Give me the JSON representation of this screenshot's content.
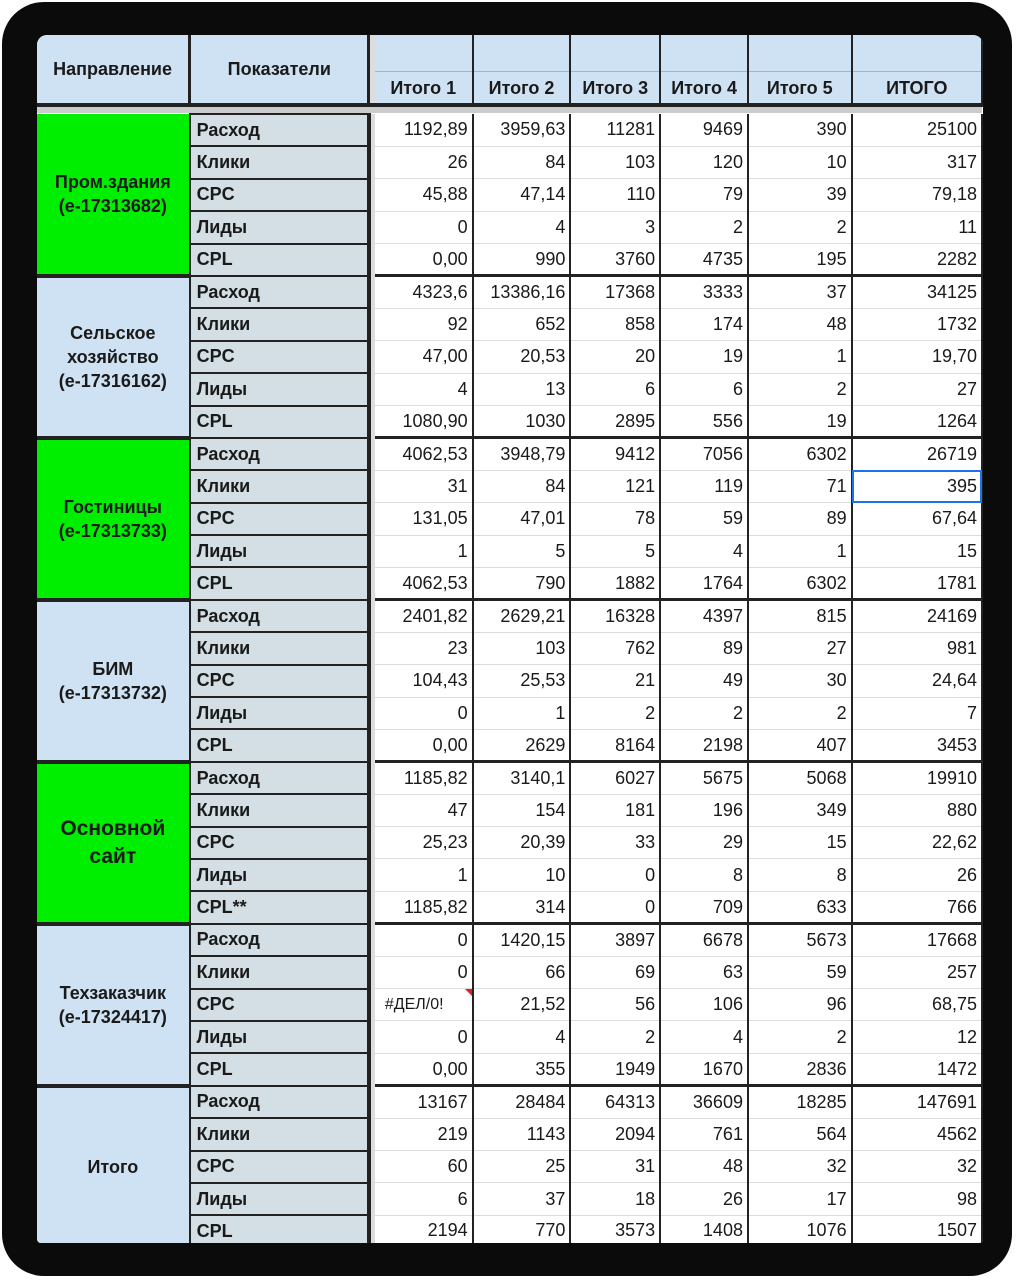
{
  "headers": {
    "direction": "Направление",
    "indicators": "Показатели",
    "columns": [
      "Итого 1",
      "Итого 2",
      "Итого 3",
      "Итого 4",
      "Итого 5",
      "ИТОГО"
    ]
  },
  "colors": {
    "green": "#00ee00",
    "blue": "#cfe2f3",
    "indicator": "#d3dfe4"
  },
  "groups": [
    {
      "name": "Пром.здания\n(e-17313682)",
      "color": "green",
      "rows": [
        {
          "label": "Расход",
          "values": [
            "1192,89",
            "3959,63",
            "11281",
            "9469",
            "390",
            "25100"
          ]
        },
        {
          "label": "Клики",
          "values": [
            "26",
            "84",
            "103",
            "120",
            "10",
            "317"
          ]
        },
        {
          "label": "CPC",
          "values": [
            "45,88",
            "47,14",
            "110",
            "79",
            "39",
            "79,18"
          ]
        },
        {
          "label": "Лиды",
          "values": [
            "0",
            "4",
            "3",
            "2",
            "2",
            "11"
          ]
        },
        {
          "label": "CPL",
          "values": [
            "0,00",
            "990",
            "3760",
            "4735",
            "195",
            "2282"
          ]
        }
      ]
    },
    {
      "name": "Сельское\nхозяйство\n(e-17316162)",
      "color": "blue",
      "rows": [
        {
          "label": "Расход",
          "values": [
            "4323,6",
            "13386,16",
            "17368",
            "3333",
            "37",
            "34125"
          ]
        },
        {
          "label": "Клики",
          "values": [
            "92",
            "652",
            "858",
            "174",
            "48",
            "1732"
          ]
        },
        {
          "label": "CPC",
          "values": [
            "47,00",
            "20,53",
            "20",
            "19",
            "1",
            "19,70"
          ]
        },
        {
          "label": "Лиды",
          "values": [
            "4",
            "13",
            "6",
            "6",
            "2",
            "27"
          ]
        },
        {
          "label": "CPL",
          "values": [
            "1080,90",
            "1030",
            "2895",
            "556",
            "19",
            "1264"
          ]
        }
      ]
    },
    {
      "name": "Гостиницы\n(e-17313733)",
      "color": "green",
      "rows": [
        {
          "label": "Расход",
          "values": [
            "4062,53",
            "3948,79",
            "9412",
            "7056",
            "6302",
            "26719"
          ]
        },
        {
          "label": "Клики",
          "values": [
            "31",
            "84",
            "121",
            "119",
            "71",
            "395"
          ]
        },
        {
          "label": "CPC",
          "values": [
            "131,05",
            "47,01",
            "78",
            "59",
            "89",
            "67,64"
          ]
        },
        {
          "label": "Лиды",
          "values": [
            "1",
            "5",
            "5",
            "4",
            "1",
            "15"
          ]
        },
        {
          "label": "CPL",
          "values": [
            "4062,53",
            "790",
            "1882",
            "1764",
            "6302",
            "1781"
          ]
        }
      ]
    },
    {
      "name": "БИМ\n(e-17313732)",
      "color": "blue",
      "rows": [
        {
          "label": "Расход",
          "values": [
            "2401,82",
            "2629,21",
            "16328",
            "4397",
            "815",
            "24169"
          ]
        },
        {
          "label": "Клики",
          "values": [
            "23",
            "103",
            "762",
            "89",
            "27",
            "981"
          ]
        },
        {
          "label": "CPC",
          "values": [
            "104,43",
            "25,53",
            "21",
            "49",
            "30",
            "24,64"
          ]
        },
        {
          "label": "Лиды",
          "values": [
            "0",
            "1",
            "2",
            "2",
            "2",
            "7"
          ]
        },
        {
          "label": "CPL",
          "values": [
            "0,00",
            "2629",
            "8164",
            "2198",
            "407",
            "3453"
          ]
        }
      ]
    },
    {
      "name": "Основной\nсайт",
      "color": "green",
      "big": true,
      "rows": [
        {
          "label": "Расход",
          "values": [
            "1185,82",
            "3140,1",
            "6027",
            "5675",
            "5068",
            "19910"
          ]
        },
        {
          "label": "Клики",
          "values": [
            "47",
            "154",
            "181",
            "196",
            "349",
            "880"
          ]
        },
        {
          "label": "CPC",
          "values": [
            "25,23",
            "20,39",
            "33",
            "29",
            "15",
            "22,62"
          ]
        },
        {
          "label": "Лиды",
          "values": [
            "1",
            "10",
            "0",
            "8",
            "8",
            "26"
          ]
        },
        {
          "label": "CPL**",
          "values": [
            "1185,82",
            "314",
            "0",
            "709",
            "633",
            "766"
          ]
        }
      ]
    },
    {
      "name": "Техзаказчик\n(e-17324417)",
      "color": "blue",
      "rows": [
        {
          "label": "Расход",
          "values": [
            "0",
            "1420,15",
            "3897",
            "6678",
            "5673",
            "17668"
          ]
        },
        {
          "label": "Клики",
          "values": [
            "0",
            "66",
            "69",
            "63",
            "59",
            "257"
          ]
        },
        {
          "label": "CPC",
          "values": [
            "#ДЕЛ/0!",
            "21,52",
            "56",
            "106",
            "96",
            "68,75"
          ]
        },
        {
          "label": "Лиды",
          "values": [
            "0",
            "4",
            "2",
            "4",
            "2",
            "12"
          ]
        },
        {
          "label": "CPL",
          "values": [
            "0,00",
            "355",
            "1949",
            "1670",
            "2836",
            "1472"
          ]
        }
      ]
    },
    {
      "name": "Итого",
      "color": "blue",
      "rows": [
        {
          "label": "Расход",
          "values": [
            "13167",
            "28484",
            "64313",
            "36609",
            "18285",
            "147691"
          ]
        },
        {
          "label": "Клики",
          "values": [
            "219",
            "1143",
            "2094",
            "761",
            "564",
            "4562"
          ]
        },
        {
          "label": "CPC",
          "values": [
            "60",
            "25",
            "31",
            "48",
            "32",
            "32"
          ]
        },
        {
          "label": "Лиды",
          "values": [
            "6",
            "37",
            "18",
            "26",
            "17",
            "98"
          ]
        },
        {
          "label": "CPL",
          "values": [
            "2194",
            "770",
            "3573",
            "1408",
            "1076",
            "1507"
          ]
        }
      ]
    }
  ],
  "selected_cell": {
    "group": 2,
    "row": 1,
    "col": 5
  }
}
